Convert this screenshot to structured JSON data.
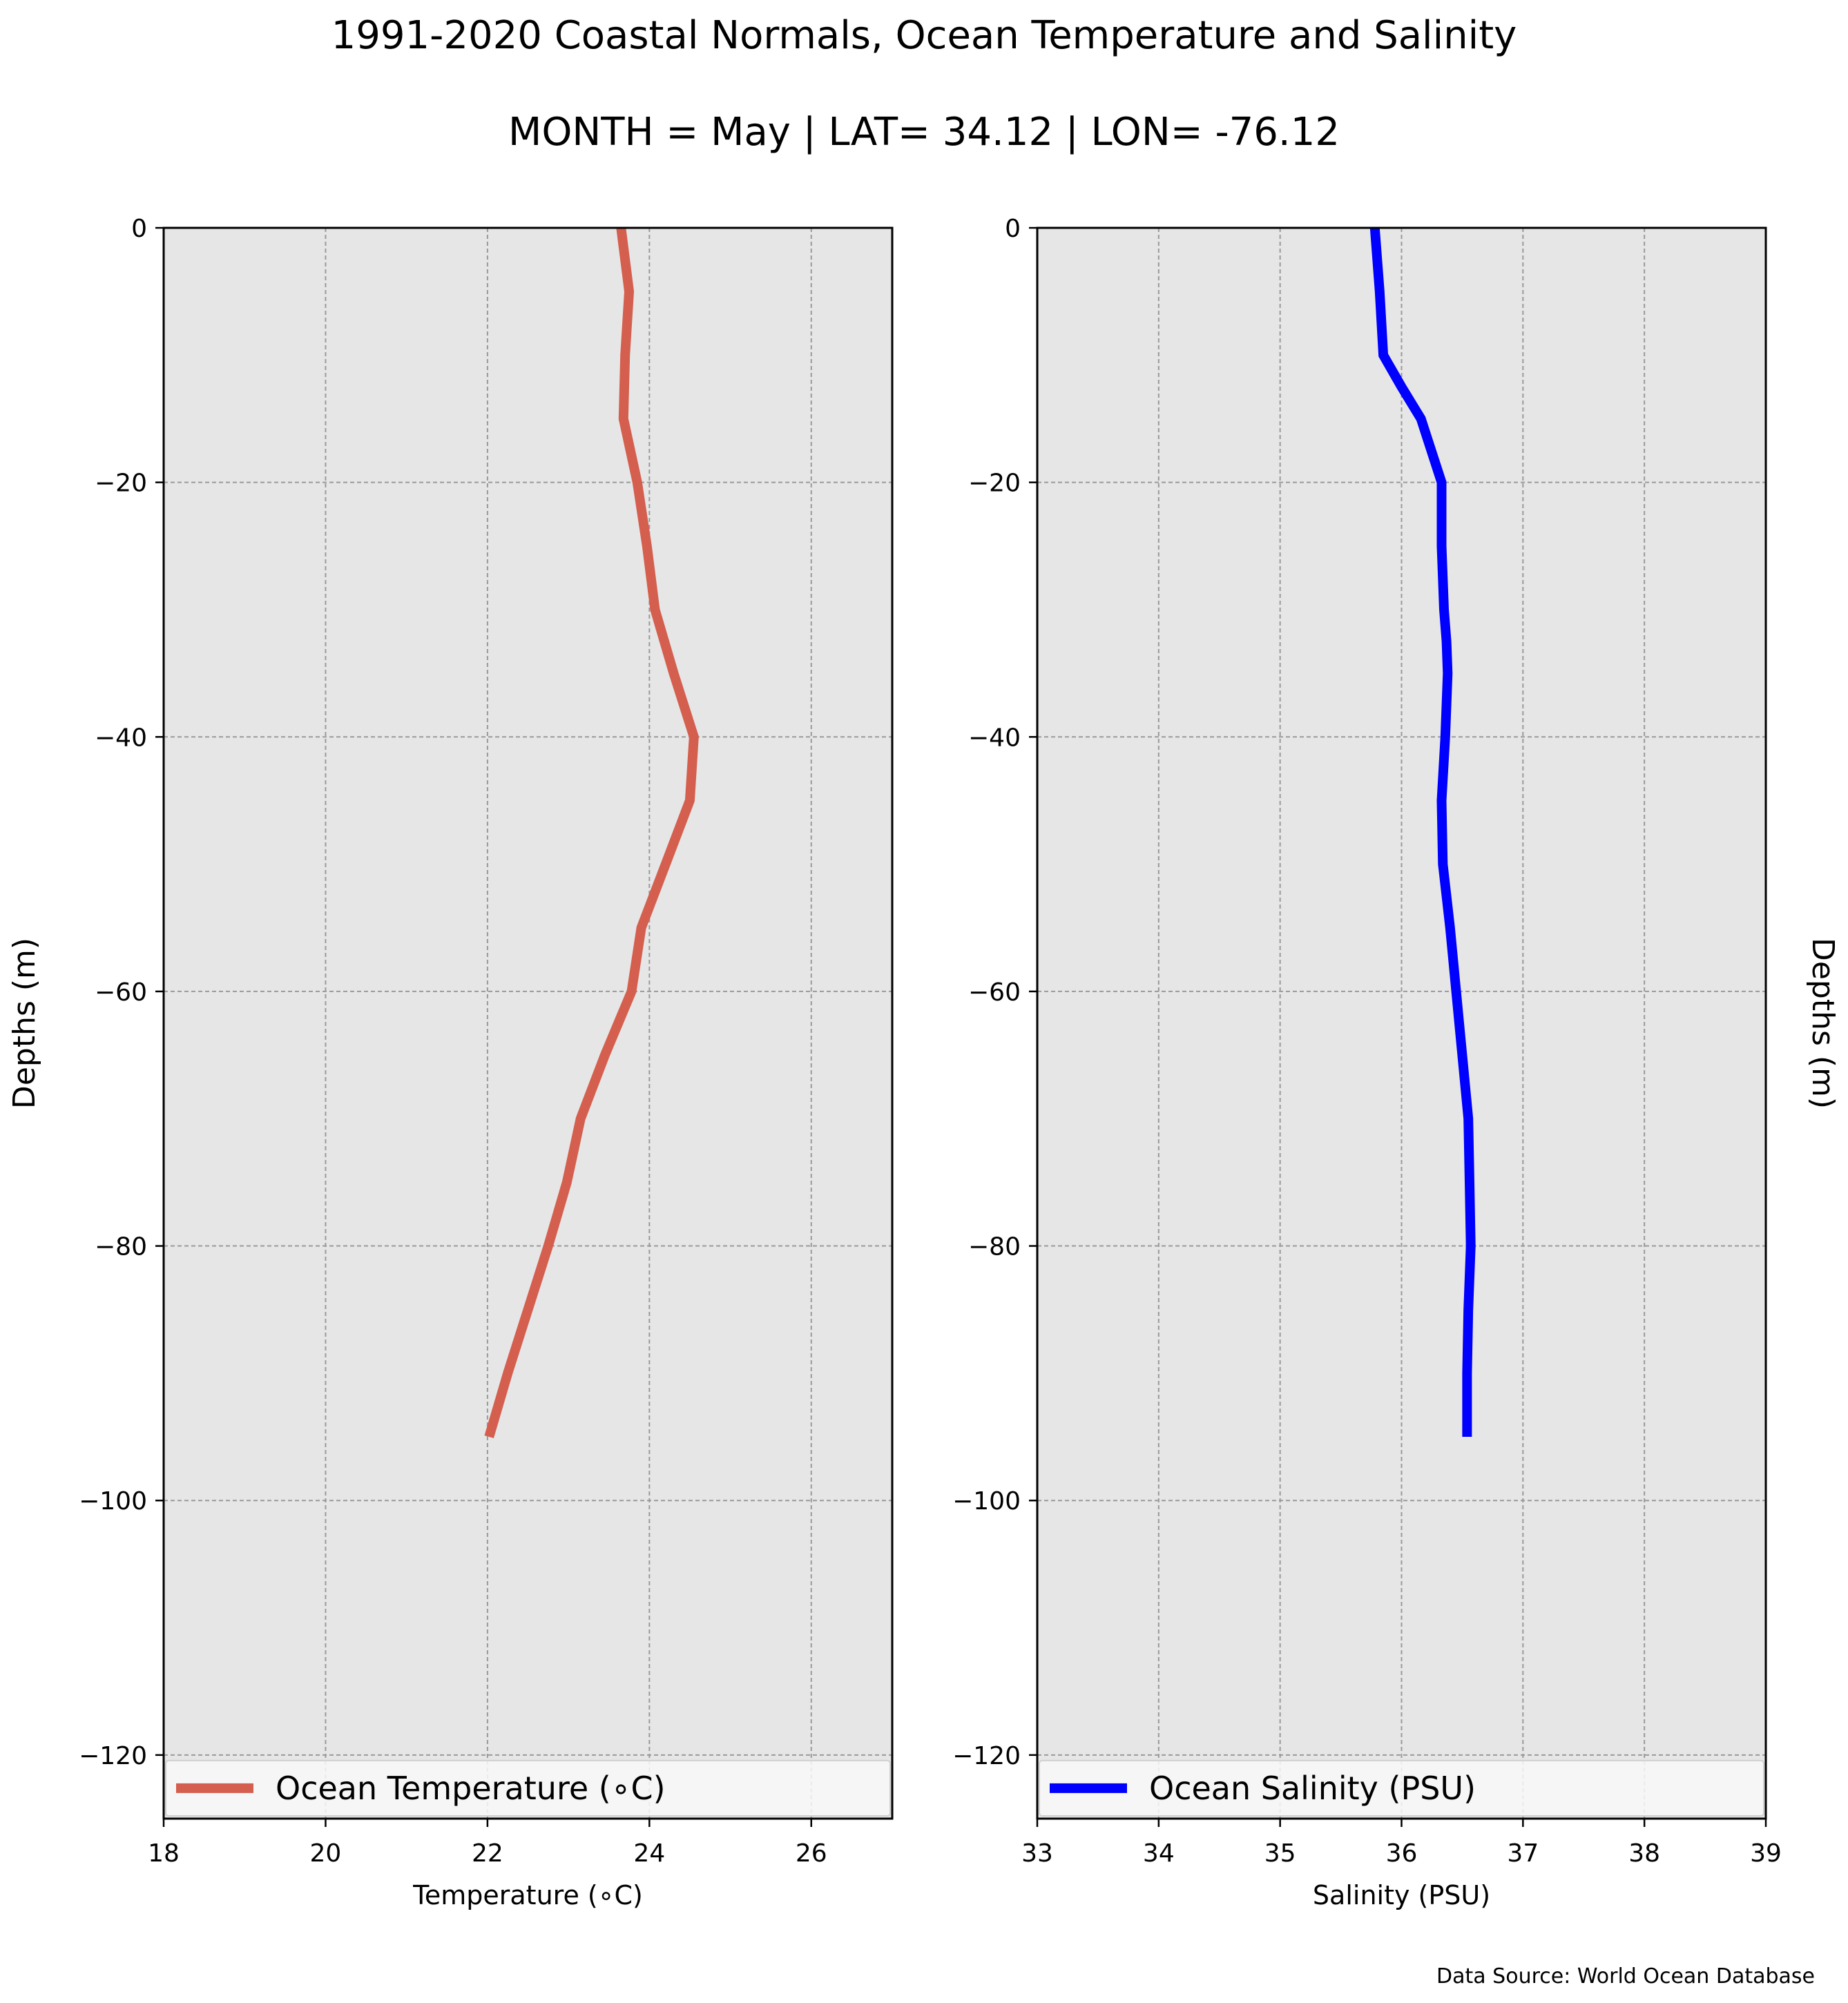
{
  "figure": {
    "title": "1991-2020 Coastal Normals, Ocean Temperature and Salinity",
    "subtitle": "MONTH = May | LAT= 34.12 | LON= -76.12",
    "source": "Data Source: World Ocean Database"
  },
  "chart_data": [
    {
      "type": "line",
      "orientation": "vertical-profile",
      "xlabel": "Temperature (∘C)",
      "ylabel": "Depths (m)",
      "xlim": [
        18,
        27
      ],
      "ylim": [
        -125,
        0
      ],
      "xticks": [
        18,
        20,
        22,
        24,
        26
      ],
      "yticks": [
        0,
        -20,
        -40,
        -60,
        -80,
        -100,
        -120
      ],
      "grid": true,
      "legend_position": "bottom",
      "background": "#e6e6e6",
      "series": [
        {
          "name": "Ocean Temperature (∘C)",
          "color": "#d45f4e",
          "x": [
            23.65,
            23.75,
            23.7,
            23.68,
            23.85,
            23.97,
            24.07,
            24.3,
            24.55,
            24.5,
            24.2,
            23.9,
            23.78,
            23.45,
            23.15,
            22.98,
            22.75,
            22.5,
            22.25,
            22.02
          ],
          "y": [
            0,
            -5,
            -10,
            -15,
            -20,
            -25,
            -30,
            -35,
            -40,
            -45,
            -50,
            -55,
            -60,
            -65,
            -70,
            -75,
            -80,
            -85,
            -90,
            -95
          ]
        }
      ]
    },
    {
      "type": "line",
      "orientation": "vertical-profile",
      "xlabel": "Salinity (PSU)",
      "ylabel": "Depths (m)",
      "xlim": [
        33,
        39
      ],
      "ylim": [
        -125,
        0
      ],
      "xticks": [
        33,
        34,
        35,
        36,
        37,
        38,
        39
      ],
      "yticks": [
        0,
        -20,
        -40,
        -60,
        -80,
        -100,
        -120
      ],
      "grid": true,
      "legend_position": "bottom",
      "background": "#e6e6e6",
      "series": [
        {
          "name": "Ocean Salinity (PSU)",
          "color": "#0000ff",
          "x": [
            35.78,
            35.82,
            35.85,
            36.0,
            36.16,
            36.33,
            36.33,
            36.35,
            36.37,
            36.38,
            36.36,
            36.33,
            36.34,
            36.4,
            36.45,
            36.5,
            36.55,
            36.56,
            36.57,
            36.55,
            36.54,
            36.54
          ],
          "y": [
            0,
            -5,
            -10,
            -12.5,
            -15,
            -20,
            -25,
            -30,
            -32.5,
            -35,
            -40,
            -45,
            -50,
            -55,
            -60,
            -65,
            -70,
            -75,
            -80,
            -85,
            -90,
            -95
          ]
        }
      ]
    }
  ]
}
